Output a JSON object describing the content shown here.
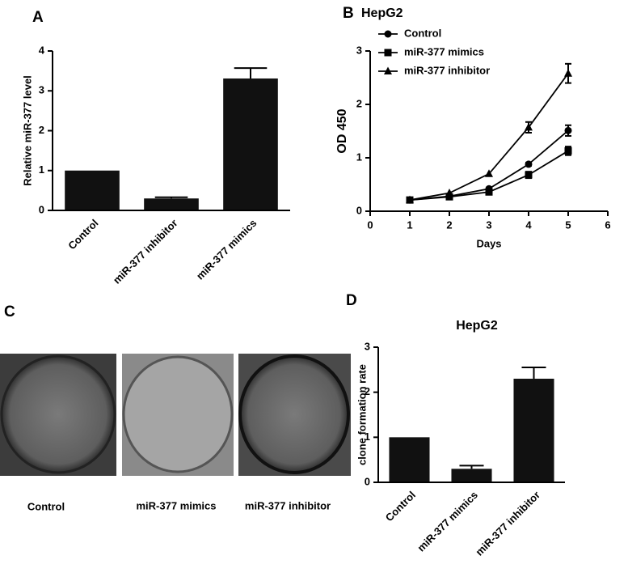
{
  "chart_data": [
    {
      "type": "bar",
      "label": "A",
      "ylabel": "Relative miR-377 level",
      "categories": [
        "Control",
        "miR-377 inhibitor",
        "miR-377 mimics"
      ],
      "values": [
        1.0,
        0.3,
        3.31
      ],
      "errors": [
        null,
        0.03,
        0.26
      ],
      "color": "#111111",
      "ylim": [
        0,
        4
      ],
      "yticks": [
        0,
        1,
        2,
        3,
        4
      ]
    },
    {
      "type": "line",
      "label": "B",
      "title": "HepG2",
      "xlabel": "Days",
      "ylabel": "OD 450",
      "x": [
        1,
        2,
        3,
        4,
        5
      ],
      "series": [
        {
          "name": "Control",
          "color": "#000000",
          "marker": "circle",
          "values": [
            0.21,
            0.28,
            0.42,
            0.88,
            1.51
          ],
          "errors": [
            null,
            null,
            null,
            0.03,
            0.1
          ]
        },
        {
          "name": "miR-377 mimics",
          "color": "#000000",
          "marker": "square",
          "values": [
            0.21,
            0.27,
            0.36,
            0.68,
            1.13
          ],
          "errors": [
            null,
            null,
            null,
            0.06,
            0.08
          ]
        },
        {
          "name": "miR-377 inhibitor",
          "color": "#000000",
          "marker": "triangle",
          "values": [
            0.21,
            0.34,
            0.7,
            1.57,
            2.58
          ],
          "errors": [
            null,
            null,
            null,
            0.1,
            0.18
          ]
        }
      ],
      "xlim": [
        0,
        6
      ],
      "xticks": [
        0,
        1,
        2,
        3,
        4,
        5,
        6
      ],
      "ylim": [
        0,
        3
      ],
      "yticks": [
        0,
        1,
        2,
        3
      ],
      "legend": "upper left"
    },
    {
      "type": "bar",
      "label": "D",
      "title": "HepG2",
      "ylabel": "clone formation rate",
      "categories": [
        "Control",
        "miR-377 mimics",
        "miR-377 inhibitor"
      ],
      "values": [
        1.0,
        0.3,
        2.3
      ],
      "errors": [
        null,
        0.07,
        0.25
      ],
      "color": "#111111",
      "ylim": [
        0,
        3
      ],
      "yticks": [
        0,
        1,
        2,
        3
      ]
    }
  ],
  "panel_c": {
    "label": "C",
    "captions": [
      "Control",
      "miR-377 mimics",
      "miR-377 inhibitor"
    ]
  }
}
